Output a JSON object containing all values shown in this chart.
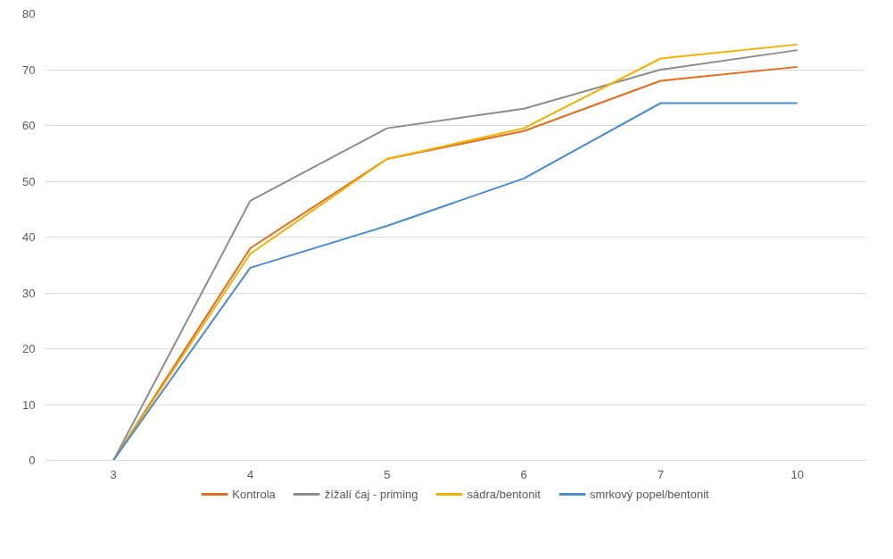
{
  "chart_data": {
    "type": "line",
    "categories": [
      "3",
      "4",
      "5",
      "6",
      "7",
      "10"
    ],
    "series": [
      {
        "name": "Kontrola",
        "color": "#e46c1c",
        "values": [
          0,
          38,
          54,
          59,
          68,
          70.5
        ]
      },
      {
        "name": "žížalí čaj - priming",
        "color": "#8c8c8c",
        "values": [
          0,
          46.5,
          59.5,
          63,
          70,
          73.5
        ]
      },
      {
        "name": "sádra/bentonit",
        "color": "#f2b000",
        "values": [
          0,
          37,
          54,
          59.5,
          72,
          74.5
        ]
      },
      {
        "name": "smrkový popel/bentonit",
        "color": "#4a8ccf",
        "values": [
          0,
          34.5,
          42,
          50.5,
          64,
          64
        ]
      }
    ],
    "ylim": [
      0,
      80
    ],
    "yticks": [
      0,
      10,
      20,
      30,
      40,
      50,
      60,
      70,
      80
    ],
    "grid": "y",
    "legend": "bottom",
    "marker": "none",
    "line_style": "solid"
  }
}
